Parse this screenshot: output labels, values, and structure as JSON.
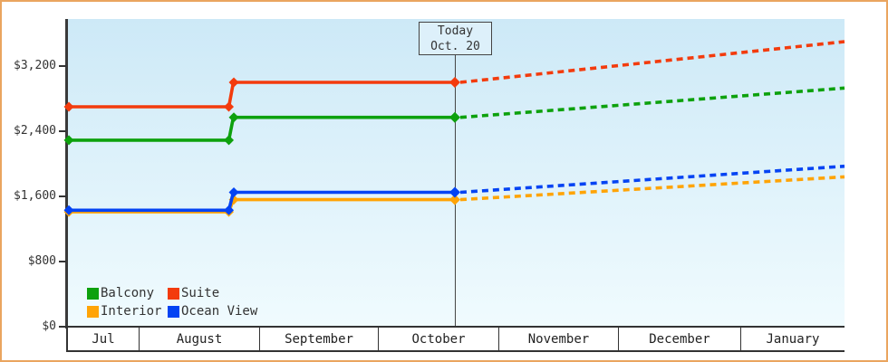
{
  "frame": {
    "border_color": "#eaa55f"
  },
  "chart_data": {
    "type": "line",
    "title": "",
    "currency": "$",
    "y_axis": {
      "ticks": [
        {
          "value": 0,
          "label": "$0"
        },
        {
          "value": 800,
          "label": "$800"
        },
        {
          "value": 1600,
          "label": "$1,600"
        },
        {
          "value": 2400,
          "label": "$2,400"
        },
        {
          "value": 3200,
          "label": "$3,200"
        }
      ],
      "dollars_per_division": 800,
      "grid": false
    },
    "x_axis": {
      "months": [
        {
          "label": "Jul",
          "start": 0.0,
          "end": 0.0921
        },
        {
          "label": "August",
          "start": 0.0921,
          "end": 0.2471
        },
        {
          "label": "September",
          "start": 0.2471,
          "end": 0.3998
        },
        {
          "label": "October",
          "start": 0.3998,
          "end": 0.5548
        },
        {
          "label": "November",
          "start": 0.5548,
          "end": 0.7086
        },
        {
          "label": "December",
          "start": 0.7086,
          "end": 0.866
        },
        {
          "label": "January",
          "start": 0.866,
          "end": 1.0
        }
      ]
    },
    "today": {
      "line1": "Today",
      "line2": "Oct. 20",
      "t": 0.4988
    },
    "price_change_t": 0.211,
    "series": [
      {
        "name": "Interior",
        "color": "#ffa406",
        "start_value": 1410,
        "current_value": 1560,
        "forecast_end_value": 1840
      },
      {
        "name": "Ocean View",
        "color": "#0443f3",
        "start_value": 1430,
        "current_value": 1650,
        "forecast_end_value": 1970
      },
      {
        "name": "Balcony",
        "color": "#0da10d",
        "start_value": 2290,
        "current_value": 2570,
        "forecast_end_value": 2930
      },
      {
        "name": "Suite",
        "color": "#f33b0d",
        "start_value": 2700,
        "current_value": 3000,
        "forecast_end_value": 3500
      }
    ],
    "legend": {
      "rows": [
        [
          "Balcony",
          "Suite"
        ],
        [
          "Interior",
          "Ocean View"
        ]
      ]
    }
  }
}
